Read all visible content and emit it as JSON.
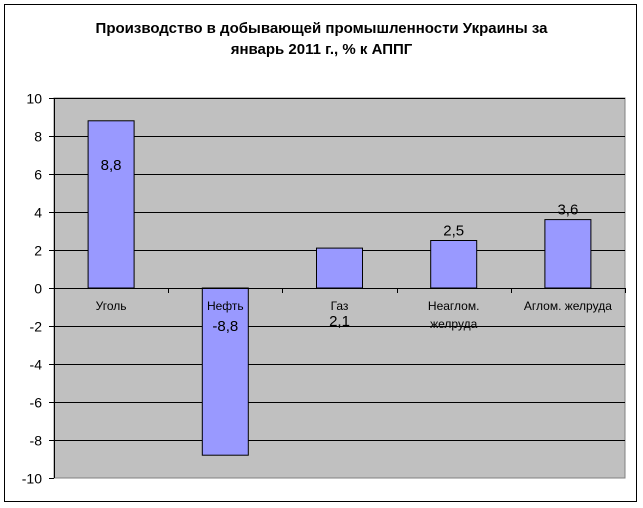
{
  "chart_data": {
    "type": "bar",
    "title_lines": [
      "Производство в добывающей промышленности Украины за",
      "январь 2011 г., % к АППГ"
    ],
    "categories": [
      "Уголь",
      "Нефть",
      "Газ",
      "Неаглом.\nжелруда",
      "Аглом. желруда"
    ],
    "values": [
      8.8,
      -8.8,
      2.1,
      2.5,
      3.6
    ],
    "value_labels": [
      "8,8",
      "-8,8",
      "2,1",
      "2,5",
      "3,6"
    ],
    "y_ticks": [
      10,
      8,
      6,
      4,
      2,
      0,
      -2,
      -4,
      -6,
      -8,
      -10
    ],
    "ylim": [
      -10,
      10
    ],
    "grid": true,
    "legend": "none",
    "colors": {
      "bar_fill": "#9999ff",
      "bar_stroke": "#000000",
      "plot_bg": "#c0c0c0",
      "grid": "#000000"
    }
  }
}
